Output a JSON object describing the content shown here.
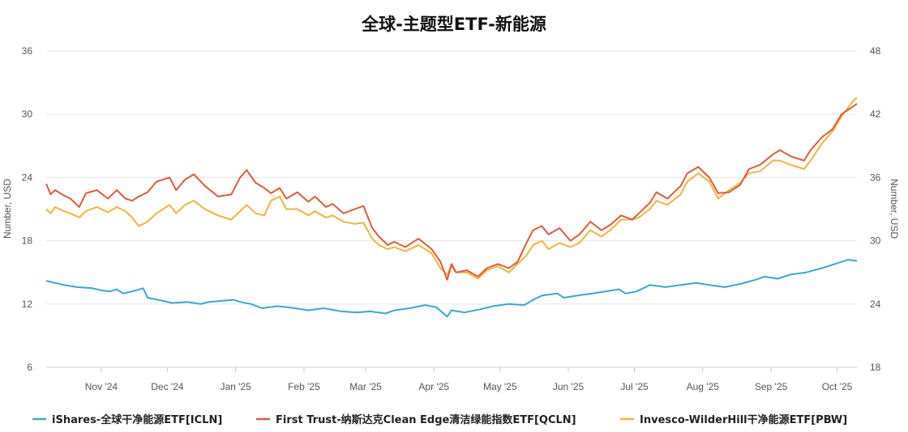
{
  "chart_data": {
    "type": "line",
    "title": "全球-主题型ETF-新能源",
    "ylabel_left": "Number, USD",
    "ylabel_right": "Number, USD",
    "y_left_lim": [
      6,
      36
    ],
    "y_left_ticks": [
      6,
      12,
      18,
      24,
      30,
      36
    ],
    "y_right_lim": [
      18,
      48
    ],
    "y_right_ticks": [
      18,
      24,
      30,
      36,
      42,
      48
    ],
    "x_range": [
      "2024-10-07",
      "2025-10-10"
    ],
    "x_ticks": [
      {
        "date": "2024-11-01",
        "label": "Nov '24"
      },
      {
        "date": "2024-12-01",
        "label": "Dec '24"
      },
      {
        "date": "2025-01-01",
        "label": "Jan '25"
      },
      {
        "date": "2025-02-01",
        "label": "Feb '25"
      },
      {
        "date": "2025-03-01",
        "label": "Mar '25"
      },
      {
        "date": "2025-04-01",
        "label": "Apr '25"
      },
      {
        "date": "2025-05-01",
        "label": "May '25"
      },
      {
        "date": "2025-06-01",
        "label": "Jun '25"
      },
      {
        "date": "2025-07-01",
        "label": "Jul '25"
      },
      {
        "date": "2025-08-01",
        "label": "Aug '25"
      },
      {
        "date": "2025-09-01",
        "label": "Sep '25"
      },
      {
        "date": "2025-10-01",
        "label": "Oct '25"
      }
    ],
    "grid": "horizontal",
    "legend_position": "bottom",
    "series": [
      {
        "name": "iShares-全球干净能源ETF[ICLN]",
        "axis": "left",
        "color": "#3aa8d0",
        "points": [
          [
            "2024-10-07",
            14.2
          ],
          [
            "2024-10-11",
            14.0
          ],
          [
            "2024-10-15",
            13.8
          ],
          [
            "2024-10-21",
            13.6
          ],
          [
            "2024-10-28",
            13.5
          ],
          [
            "2024-11-01",
            13.3
          ],
          [
            "2024-11-05",
            13.2
          ],
          [
            "2024-11-08",
            13.4
          ],
          [
            "2024-11-11",
            13.0
          ],
          [
            "2024-11-15",
            13.2
          ],
          [
            "2024-11-20",
            13.5
          ],
          [
            "2024-11-22",
            12.6
          ],
          [
            "2024-11-29",
            12.3
          ],
          [
            "2024-12-03",
            12.1
          ],
          [
            "2024-12-10",
            12.2
          ],
          [
            "2024-12-16",
            12.0
          ],
          [
            "2024-12-20",
            12.2
          ],
          [
            "2024-12-31",
            12.4
          ],
          [
            "2025-01-03",
            12.2
          ],
          [
            "2025-01-08",
            12.0
          ],
          [
            "2025-01-13",
            11.6
          ],
          [
            "2025-01-20",
            11.8
          ],
          [
            "2025-01-28",
            11.6
          ],
          [
            "2025-02-03",
            11.4
          ],
          [
            "2025-02-10",
            11.6
          ],
          [
            "2025-02-18",
            11.3
          ],
          [
            "2025-02-25",
            11.2
          ],
          [
            "2025-03-03",
            11.3
          ],
          [
            "2025-03-10",
            11.1
          ],
          [
            "2025-03-14",
            11.4
          ],
          [
            "2025-03-21",
            11.6
          ],
          [
            "2025-03-28",
            11.9
          ],
          [
            "2025-04-02",
            11.7
          ],
          [
            "2025-04-07",
            10.8
          ],
          [
            "2025-04-09",
            11.4
          ],
          [
            "2025-04-15",
            11.2
          ],
          [
            "2025-04-22",
            11.5
          ],
          [
            "2025-04-28",
            11.8
          ],
          [
            "2025-05-05",
            12.0
          ],
          [
            "2025-05-12",
            11.9
          ],
          [
            "2025-05-16",
            12.4
          ],
          [
            "2025-05-20",
            12.8
          ],
          [
            "2025-05-27",
            13.0
          ],
          [
            "2025-05-30",
            12.6
          ],
          [
            "2025-06-05",
            12.8
          ],
          [
            "2025-06-12",
            13.0
          ],
          [
            "2025-06-18",
            13.2
          ],
          [
            "2025-06-24",
            13.4
          ],
          [
            "2025-06-27",
            13.0
          ],
          [
            "2025-07-02",
            13.2
          ],
          [
            "2025-07-08",
            13.8
          ],
          [
            "2025-07-15",
            13.6
          ],
          [
            "2025-07-22",
            13.8
          ],
          [
            "2025-07-29",
            14.0
          ],
          [
            "2025-08-04",
            13.8
          ],
          [
            "2025-08-11",
            13.6
          ],
          [
            "2025-08-18",
            13.9
          ],
          [
            "2025-08-25",
            14.3
          ],
          [
            "2025-08-29",
            14.6
          ],
          [
            "2025-09-04",
            14.4
          ],
          [
            "2025-09-10",
            14.8
          ],
          [
            "2025-09-17",
            15.0
          ],
          [
            "2025-09-24",
            15.4
          ],
          [
            "2025-09-30",
            15.8
          ],
          [
            "2025-10-06",
            16.2
          ],
          [
            "2025-10-10",
            16.1
          ]
        ]
      },
      {
        "name": "First Trust-纳斯达克Clean Edge清洁绿能指数ETF[QCLN]",
        "axis": "right",
        "color": "#e05a3c",
        "points": [
          [
            "2024-10-07",
            35.4
          ],
          [
            "2024-10-09",
            34.4
          ],
          [
            "2024-10-11",
            34.8
          ],
          [
            "2024-10-15",
            34.3
          ],
          [
            "2024-10-18",
            34.0
          ],
          [
            "2024-10-22",
            33.2
          ],
          [
            "2024-10-25",
            34.5
          ],
          [
            "2024-10-30",
            34.8
          ],
          [
            "2024-11-04",
            34.0
          ],
          [
            "2024-11-08",
            34.8
          ],
          [
            "2024-11-12",
            34.0
          ],
          [
            "2024-11-15",
            33.8
          ],
          [
            "2024-11-18",
            34.2
          ],
          [
            "2024-11-22",
            34.6
          ],
          [
            "2024-11-26",
            35.6
          ],
          [
            "2024-12-02",
            36.0
          ],
          [
            "2024-12-05",
            34.8
          ],
          [
            "2024-12-09",
            35.8
          ],
          [
            "2024-12-13",
            36.3
          ],
          [
            "2024-12-18",
            35.2
          ],
          [
            "2024-12-24",
            34.2
          ],
          [
            "2024-12-30",
            34.4
          ],
          [
            "2025-01-03",
            36.0
          ],
          [
            "2025-01-06",
            36.7
          ],
          [
            "2025-01-10",
            35.5
          ],
          [
            "2025-01-14",
            35.0
          ],
          [
            "2025-01-17",
            34.5
          ],
          [
            "2025-01-21",
            35.0
          ],
          [
            "2025-01-24",
            34.0
          ],
          [
            "2025-01-29",
            34.6
          ],
          [
            "2025-02-03",
            33.7
          ],
          [
            "2025-02-06",
            34.2
          ],
          [
            "2025-02-11",
            33.2
          ],
          [
            "2025-02-14",
            33.5
          ],
          [
            "2025-02-19",
            32.6
          ],
          [
            "2025-02-24",
            33.0
          ],
          [
            "2025-02-28",
            33.3
          ],
          [
            "2025-03-04",
            31.2
          ],
          [
            "2025-03-07",
            30.4
          ],
          [
            "2025-03-11",
            29.6
          ],
          [
            "2025-03-14",
            29.9
          ],
          [
            "2025-03-19",
            29.4
          ],
          [
            "2025-03-25",
            30.2
          ],
          [
            "2025-03-31",
            29.2
          ],
          [
            "2025-04-04",
            28.0
          ],
          [
            "2025-04-07",
            26.3
          ],
          [
            "2025-04-09",
            27.8
          ],
          [
            "2025-04-11",
            27.0
          ],
          [
            "2025-04-16",
            27.2
          ],
          [
            "2025-04-21",
            26.6
          ],
          [
            "2025-04-25",
            27.4
          ],
          [
            "2025-04-30",
            27.8
          ],
          [
            "2025-05-05",
            27.4
          ],
          [
            "2025-05-09",
            28.0
          ],
          [
            "2025-05-13",
            29.8
          ],
          [
            "2025-05-16",
            31.0
          ],
          [
            "2025-05-20",
            31.4
          ],
          [
            "2025-05-23",
            30.6
          ],
          [
            "2025-05-28",
            31.2
          ],
          [
            "2025-06-02",
            30.0
          ],
          [
            "2025-06-06",
            30.6
          ],
          [
            "2025-06-11",
            31.8
          ],
          [
            "2025-06-16",
            31.0
          ],
          [
            "2025-06-20",
            31.5
          ],
          [
            "2025-06-25",
            32.4
          ],
          [
            "2025-06-30",
            32.0
          ],
          [
            "2025-07-03",
            32.6
          ],
          [
            "2025-07-08",
            33.6
          ],
          [
            "2025-07-11",
            34.6
          ],
          [
            "2025-07-16",
            34.0
          ],
          [
            "2025-07-22",
            35.2
          ],
          [
            "2025-07-25",
            36.4
          ],
          [
            "2025-07-30",
            37.0
          ],
          [
            "2025-08-04",
            36.0
          ],
          [
            "2025-08-08",
            34.5
          ],
          [
            "2025-08-13",
            34.6
          ],
          [
            "2025-08-18",
            35.3
          ],
          [
            "2025-08-22",
            36.8
          ],
          [
            "2025-08-27",
            37.2
          ],
          [
            "2025-09-02",
            38.2
          ],
          [
            "2025-09-05",
            38.6
          ],
          [
            "2025-09-10",
            38.0
          ],
          [
            "2025-09-16",
            37.6
          ],
          [
            "2025-09-19",
            38.6
          ],
          [
            "2025-09-24",
            39.8
          ],
          [
            "2025-09-29",
            40.6
          ],
          [
            "2025-10-03",
            42.0
          ],
          [
            "2025-10-08",
            42.7
          ],
          [
            "2025-10-10",
            43.0
          ]
        ]
      },
      {
        "name": "Invesco-WilderHill干净能源ETF[PBW]",
        "axis": "right",
        "color": "#f0b440",
        "points": [
          [
            "2024-10-07",
            33.0
          ],
          [
            "2024-10-09",
            32.6
          ],
          [
            "2024-10-11",
            33.2
          ],
          [
            "2024-10-15",
            32.8
          ],
          [
            "2024-10-18",
            32.6
          ],
          [
            "2024-10-22",
            32.2
          ],
          [
            "2024-10-25",
            32.8
          ],
          [
            "2024-10-30",
            33.2
          ],
          [
            "2024-11-04",
            32.7
          ],
          [
            "2024-11-08",
            33.2
          ],
          [
            "2024-11-12",
            32.8
          ],
          [
            "2024-11-15",
            32.2
          ],
          [
            "2024-11-18",
            31.4
          ],
          [
            "2024-11-22",
            31.8
          ],
          [
            "2024-11-26",
            32.6
          ],
          [
            "2024-12-02",
            33.4
          ],
          [
            "2024-12-05",
            32.6
          ],
          [
            "2024-12-09",
            33.4
          ],
          [
            "2024-12-13",
            33.8
          ],
          [
            "2024-12-18",
            33.0
          ],
          [
            "2024-12-24",
            32.4
          ],
          [
            "2024-12-30",
            32.0
          ],
          [
            "2025-01-03",
            32.8
          ],
          [
            "2025-01-06",
            33.4
          ],
          [
            "2025-01-10",
            32.6
          ],
          [
            "2025-01-14",
            32.4
          ],
          [
            "2025-01-17",
            33.8
          ],
          [
            "2025-01-21",
            34.2
          ],
          [
            "2025-01-24",
            33.0
          ],
          [
            "2025-01-29",
            33.0
          ],
          [
            "2025-02-03",
            32.4
          ],
          [
            "2025-02-06",
            32.8
          ],
          [
            "2025-02-11",
            32.2
          ],
          [
            "2025-02-14",
            32.4
          ],
          [
            "2025-02-19",
            31.8
          ],
          [
            "2025-02-24",
            31.6
          ],
          [
            "2025-02-28",
            31.7
          ],
          [
            "2025-03-04",
            30.2
          ],
          [
            "2025-03-07",
            29.6
          ],
          [
            "2025-03-11",
            29.2
          ],
          [
            "2025-03-14",
            29.4
          ],
          [
            "2025-03-19",
            29.0
          ],
          [
            "2025-03-25",
            29.6
          ],
          [
            "2025-03-31",
            28.8
          ],
          [
            "2025-04-04",
            27.4
          ],
          [
            "2025-04-07",
            26.8
          ],
          [
            "2025-04-09",
            27.6
          ],
          [
            "2025-04-11",
            27.0
          ],
          [
            "2025-04-16",
            27.0
          ],
          [
            "2025-04-21",
            26.4
          ],
          [
            "2025-04-25",
            27.2
          ],
          [
            "2025-04-30",
            27.6
          ],
          [
            "2025-05-05",
            27.0
          ],
          [
            "2025-05-09",
            27.8
          ],
          [
            "2025-05-13",
            28.6
          ],
          [
            "2025-05-16",
            29.6
          ],
          [
            "2025-05-20",
            30.0
          ],
          [
            "2025-05-23",
            29.2
          ],
          [
            "2025-05-28",
            29.8
          ],
          [
            "2025-06-02",
            29.4
          ],
          [
            "2025-06-06",
            29.8
          ],
          [
            "2025-06-11",
            31.0
          ],
          [
            "2025-06-16",
            30.4
          ],
          [
            "2025-06-20",
            31.0
          ],
          [
            "2025-06-25",
            32.0
          ],
          [
            "2025-06-30",
            32.0
          ],
          [
            "2025-07-03",
            32.2
          ],
          [
            "2025-07-08",
            33.0
          ],
          [
            "2025-07-11",
            33.8
          ],
          [
            "2025-07-16",
            33.4
          ],
          [
            "2025-07-22",
            34.4
          ],
          [
            "2025-07-25",
            35.6
          ],
          [
            "2025-07-30",
            36.4
          ],
          [
            "2025-08-04",
            35.6
          ],
          [
            "2025-08-08",
            34.0
          ],
          [
            "2025-08-13",
            34.8
          ],
          [
            "2025-08-18",
            35.5
          ],
          [
            "2025-08-22",
            36.4
          ],
          [
            "2025-08-27",
            36.6
          ],
          [
            "2025-09-02",
            37.6
          ],
          [
            "2025-09-05",
            37.6
          ],
          [
            "2025-09-10",
            37.2
          ],
          [
            "2025-09-16",
            36.8
          ],
          [
            "2025-09-19",
            37.6
          ],
          [
            "2025-09-24",
            39.2
          ],
          [
            "2025-09-29",
            40.4
          ],
          [
            "2025-10-03",
            41.8
          ],
          [
            "2025-10-08",
            43.2
          ],
          [
            "2025-10-10",
            43.6
          ]
        ]
      }
    ]
  }
}
